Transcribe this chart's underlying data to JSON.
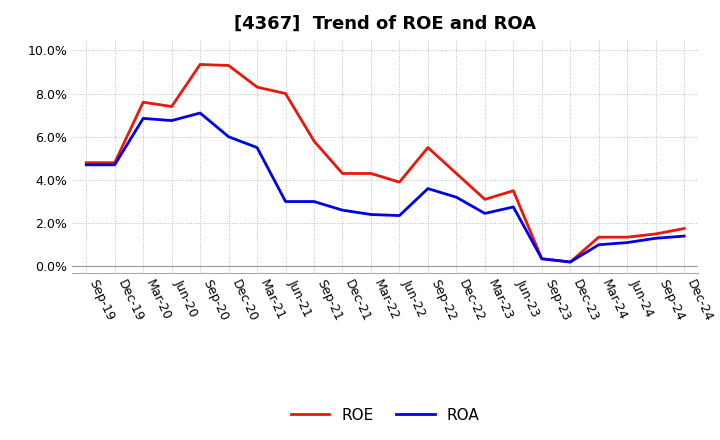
{
  "title": "[4367]  Trend of ROE and ROA",
  "x_labels": [
    "Sep-19",
    "Dec-19",
    "Mar-20",
    "Jun-20",
    "Sep-20",
    "Dec-20",
    "Mar-21",
    "Jun-21",
    "Sep-21",
    "Dec-21",
    "Mar-22",
    "Jun-22",
    "Sep-22",
    "Dec-22",
    "Mar-23",
    "Jun-23",
    "Sep-23",
    "Dec-23",
    "Mar-24",
    "Jun-24",
    "Sep-24",
    "Dec-24"
  ],
  "roe": [
    4.8,
    4.8,
    7.6,
    7.4,
    9.35,
    9.3,
    8.3,
    8.0,
    5.8,
    4.3,
    4.3,
    3.9,
    5.5,
    4.3,
    3.1,
    3.5,
    0.35,
    0.2,
    1.35,
    1.35,
    1.5,
    1.75
  ],
  "roa": [
    4.7,
    4.7,
    6.85,
    6.75,
    7.1,
    6.0,
    5.5,
    3.0,
    3.0,
    2.6,
    2.4,
    2.35,
    3.6,
    3.2,
    2.45,
    2.75,
    0.35,
    0.2,
    1.0,
    1.1,
    1.3,
    1.4
  ],
  "roe_color": "#e8180a",
  "roa_color": "#0000e8",
  "ylim": [
    -0.3,
    10.5
  ],
  "yticks": [
    0.0,
    2.0,
    4.0,
    6.0,
    8.0,
    10.0
  ],
  "background_color": "#ffffff",
  "plot_bg_color": "#ffffff",
  "grid_color": "#bbbbbb",
  "title_fontsize": 13,
  "legend_fontsize": 11,
  "tick_fontsize": 9,
  "line_width": 2.0
}
